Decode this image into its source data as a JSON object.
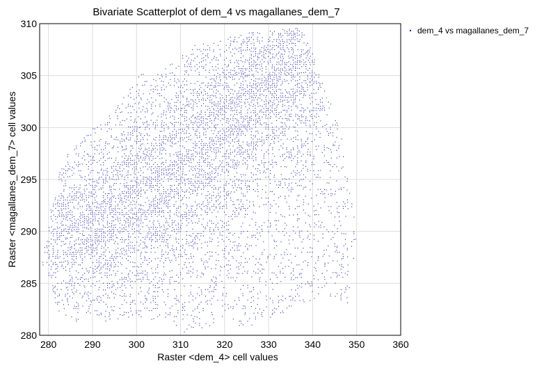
{
  "chart_data": {
    "type": "scatter",
    "title": "Bivariate Scatterplot of dem_4 vs magallanes_dem_7",
    "xlabel": "Raster <dem_4> cell values",
    "ylabel": "Raster <magallanes_dem_7> cell values",
    "xlim": [
      278,
      360
    ],
    "ylim": [
      280,
      310
    ],
    "xticks": [
      280,
      290,
      300,
      310,
      320,
      330,
      340,
      350,
      360
    ],
    "yticks": [
      280,
      285,
      290,
      295,
      300,
      305,
      310
    ],
    "grid": true,
    "legend_position": "top-right",
    "point_color": "#2020a0",
    "series": [
      {
        "name": "dem_4 vs magallanes_dem_7",
        "region_outline": [
          [
            278.3,
            287.0
          ],
          [
            279.5,
            290.0
          ],
          [
            281.5,
            294.0
          ],
          [
            283.0,
            297.0
          ],
          [
            288.5,
            299.5
          ],
          [
            291.5,
            300.3
          ],
          [
            295.5,
            302.0
          ],
          [
            298.5,
            304.0
          ],
          [
            300.0,
            305.2
          ],
          [
            304.0,
            305.0
          ],
          [
            308.5,
            306.5
          ],
          [
            313.0,
            308.0
          ],
          [
            319.0,
            308.5
          ],
          [
            323.0,
            309.0
          ],
          [
            328.0,
            309.3
          ],
          [
            331.5,
            309.5
          ],
          [
            336.0,
            309.7
          ],
          [
            338.5,
            309.0
          ],
          [
            341.0,
            305.5
          ],
          [
            344.5,
            302.0
          ],
          [
            346.5,
            299.0
          ],
          [
            347.5,
            296.0
          ],
          [
            348.8,
            293.0
          ],
          [
            349.8,
            290.0
          ],
          [
            349.6,
            287.5
          ],
          [
            348.5,
            285.5
          ],
          [
            348.2,
            284.0
          ],
          [
            347.8,
            283.0
          ],
          [
            345.0,
            283.5
          ],
          [
            340.0,
            283.5
          ],
          [
            335.0,
            282.5
          ],
          [
            330.0,
            281.5
          ],
          [
            325.0,
            280.8
          ],
          [
            320.0,
            280.5
          ],
          [
            315.0,
            280.8
          ],
          [
            311.0,
            280.2
          ],
          [
            307.0,
            281.5
          ],
          [
            303.0,
            281.5
          ],
          [
            298.0,
            281.5
          ],
          [
            292.0,
            281.2
          ],
          [
            286.0,
            281.3
          ],
          [
            282.5,
            281.5
          ],
          [
            281.0,
            283.5
          ],
          [
            280.5,
            285.5
          ]
        ],
        "dense_band": [
          [
            288.0,
            290.0
          ],
          [
            296.0,
            291.5
          ],
          [
            304.0,
            294.0
          ],
          [
            312.0,
            297.0
          ],
          [
            320.0,
            300.5
          ],
          [
            327.0,
            303.5
          ],
          [
            333.0,
            306.0
          ],
          [
            336.0,
            307.0
          ]
        ]
      }
    ]
  }
}
